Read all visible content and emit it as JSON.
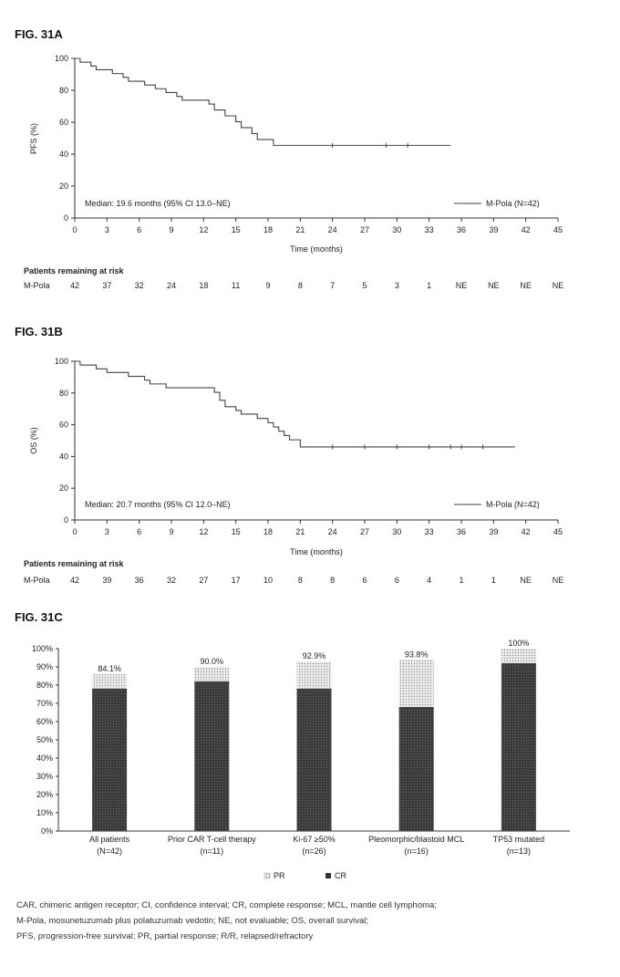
{
  "chart_data": [
    {
      "id": "fig31a",
      "type": "line",
      "figure_label": "FIG. 31A",
      "ylabel": "PFS (%)",
      "xlabel": "Time (months)",
      "ylim": [
        0,
        100
      ],
      "yticks": [
        0,
        20,
        40,
        60,
        80,
        100
      ],
      "xlim": [
        0,
        45
      ],
      "xticks": [
        0,
        3,
        6,
        9,
        12,
        15,
        18,
        21,
        24,
        27,
        30,
        33,
        36,
        39,
        42,
        45
      ],
      "median_text": "Median: 19.6 months (95% CI 13.0–NE)",
      "legend": "M-Pola (N=42)",
      "series": [
        {
          "name": "M-Pola (N=42)",
          "steps": [
            [
              0,
              100
            ],
            [
              0.5,
              97.6
            ],
            [
              1.5,
              95.2
            ],
            [
              2,
              92.9
            ],
            [
              3.5,
              90.5
            ],
            [
              4.5,
              88.1
            ],
            [
              5,
              85.7
            ],
            [
              6.5,
              83.3
            ],
            [
              7.5,
              81
            ],
            [
              8.5,
              78.6
            ],
            [
              9.5,
              76.2
            ],
            [
              10,
              73.8
            ],
            [
              12.5,
              71.4
            ],
            [
              13,
              67.7
            ],
            [
              14,
              64
            ],
            [
              15,
              60.3
            ],
            [
              15.5,
              56.6
            ],
            [
              16.5,
              52.9
            ],
            [
              17,
              49.2
            ],
            [
              18.5,
              45.5
            ],
            [
              35,
              45.5
            ]
          ],
          "censor_x": [
            24,
            29,
            31
          ]
        }
      ],
      "risk_table": {
        "title": "Patients remaining at risk",
        "row_label": "M-Pola",
        "values": [
          "42",
          "37",
          "32",
          "24",
          "18",
          "11",
          "9",
          "8",
          "7",
          "5",
          "3",
          "1",
          "NE",
          "NE",
          "NE",
          "NE"
        ]
      }
    },
    {
      "id": "fig31b",
      "type": "line",
      "figure_label": "FIG. 31B",
      "ylabel": "OS (%)",
      "xlabel": "Time (months)",
      "ylim": [
        0,
        100
      ],
      "yticks": [
        0,
        20,
        40,
        60,
        80,
        100
      ],
      "xlim": [
        0,
        45
      ],
      "xticks": [
        0,
        3,
        6,
        9,
        12,
        15,
        18,
        21,
        24,
        27,
        30,
        33,
        36,
        39,
        42,
        45
      ],
      "median_text": "Median: 20.7 months (95% CI 12.0–NE)",
      "legend": "M-Pola (N=42)",
      "series": [
        {
          "name": "M-Pola (N=42)",
          "steps": [
            [
              0,
              100
            ],
            [
              0.5,
              97.6
            ],
            [
              2,
              95.2
            ],
            [
              3,
              92.9
            ],
            [
              5,
              90.5
            ],
            [
              6.5,
              88.1
            ],
            [
              7,
              85.7
            ],
            [
              8.5,
              83.3
            ],
            [
              13,
              80.4
            ],
            [
              13.5,
              75.4
            ],
            [
              14,
              71.4
            ],
            [
              15,
              69
            ],
            [
              15.5,
              66.7
            ],
            [
              17,
              64
            ],
            [
              18,
              61.3
            ],
            [
              18.5,
              58.6
            ],
            [
              19,
              55.9
            ],
            [
              19.5,
              53.2
            ],
            [
              20,
              50.5
            ],
            [
              21,
              46
            ],
            [
              41,
              46
            ]
          ],
          "censor_x": [
            24,
            27,
            30,
            33,
            35,
            36,
            38
          ]
        }
      ],
      "risk_table": {
        "title": "Patients remaining at risk",
        "row_label": "M-Pola",
        "values": [
          "42",
          "39",
          "36",
          "32",
          "27",
          "17",
          "10",
          "8",
          "8",
          "6",
          "6",
          "4",
          "1",
          "1",
          "NE",
          "NE"
        ]
      }
    },
    {
      "id": "fig31c",
      "type": "bar",
      "figure_label": "FIG. 31C",
      "ylim": [
        0,
        100
      ],
      "yticks": [
        "0%",
        "10%",
        "20%",
        "30%",
        "40%",
        "50%",
        "60%",
        "70%",
        "80%",
        "90%",
        "100%"
      ],
      "categories": [
        {
          "line1": "All patients",
          "line2": "(N=42)"
        },
        {
          "line1": "Prior CAR T-cell therapy",
          "line2": "(n=11)"
        },
        {
          "line1": "Ki-67 ≥50%",
          "line2": "(n=26)"
        },
        {
          "line1": "Pleomorphic/blastoid MCL",
          "line2": "(n=16)"
        },
        {
          "line1": "TP53 mutated",
          "line2": "(n=13)"
        }
      ],
      "series": [
        {
          "name": "CR",
          "values": [
            78,
            82,
            78,
            68,
            92
          ]
        },
        {
          "name": "PR",
          "values": [
            8.1,
            8.0,
            14.9,
            25.8,
            8
          ]
        }
      ],
      "total_labels": [
        "84.1%",
        "90.0%",
        "92.9%",
        "93.8%",
        "100%"
      ],
      "legend": {
        "pr": "PR",
        "cr": "CR"
      }
    }
  ],
  "footnotes": [
    "CAR, chimeric antigen receptor; CI, confidence interval; CR, complete response; MCL, mantle cell lymphoma;",
    "M-Pola, mosunetuzumab plus polatuzumab vedotin; NE, not evaluable; OS, overall survival;",
    "PFS, progression-free survival; PR, partial response; R/R, relapsed/refractory"
  ]
}
